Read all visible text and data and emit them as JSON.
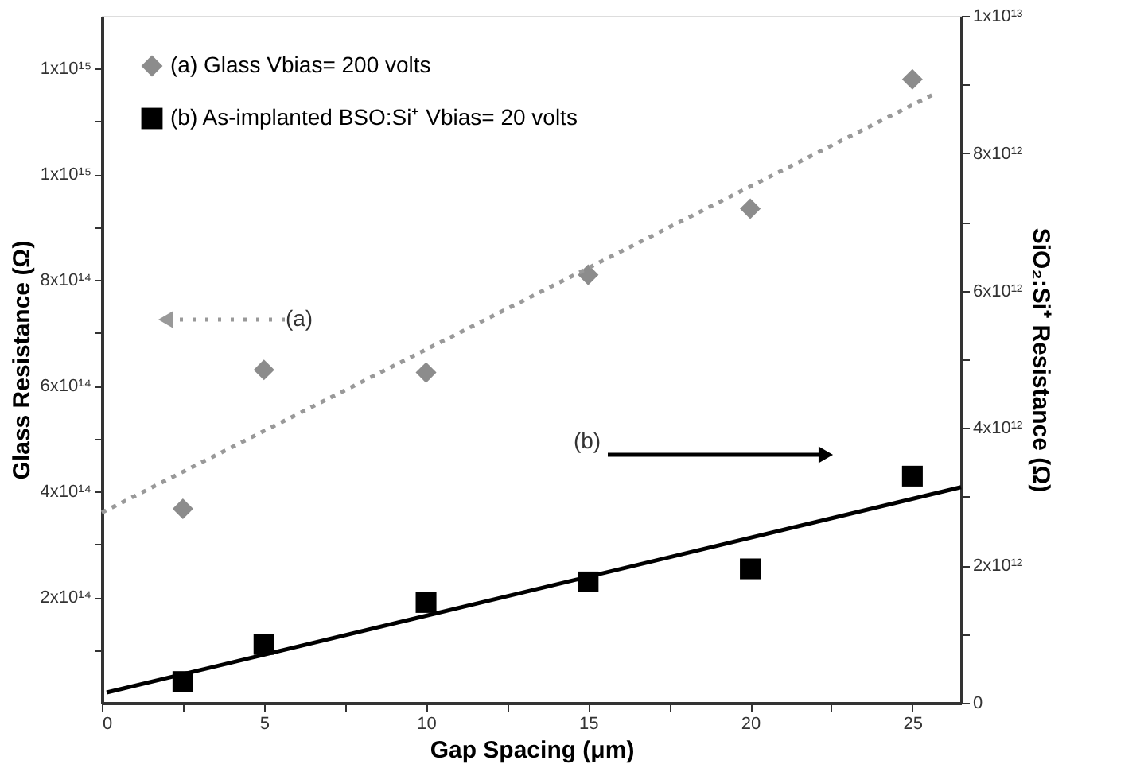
{
  "chart_data": {
    "type": "scatter",
    "xlabel": "Gap Spacing (μm)",
    "ylabel": "Glass Resistance (Ω)",
    "y2label": "SiO₂:Si⁺ Resistance (Ω)",
    "xlim": [
      0,
      26.5
    ],
    "xticks": [
      0,
      {
        "value": 2.5,
        "label": null
      },
      5,
      {
        "value": 7.5,
        "label": null
      },
      10,
      {
        "value": 12.5,
        "label": null
      },
      15,
      {
        "value": 17.5,
        "label": null
      },
      20,
      {
        "value": 22.5,
        "label": null
      },
      25
    ],
    "ylim": [
      0,
      1300000000000000.0
    ],
    "yticks": [
      {
        "value": 100000000000000.0,
        "label": null
      },
      {
        "value": 200000000000000.0,
        "label": "2x10¹⁴"
      },
      {
        "value": 300000000000000.0,
        "label": null
      },
      {
        "value": 400000000000000.0,
        "label": "4x10¹⁴"
      },
      {
        "value": 500000000000000.0,
        "label": null
      },
      {
        "value": 600000000000000.0,
        "label": "6x10¹⁴"
      },
      {
        "value": 700000000000000.0,
        "label": null
      },
      {
        "value": 800000000000000.0,
        "label": "8x10¹⁴"
      },
      {
        "value": 900000000000000.0,
        "label": null
      },
      {
        "value": 1000000000000000.0,
        "label": "1x10¹⁵"
      },
      {
        "value": 1100000000000000.0,
        "label": null
      },
      {
        "value": 1200000000000000.0,
        "label": "1x10¹⁵"
      }
    ],
    "y2lim": [
      0,
      10000000000000.0
    ],
    "y2ticks": [
      0,
      {
        "value": 1000000000000.0,
        "label": null
      },
      {
        "value": 2000000000000.0,
        "label": "2x10¹²"
      },
      {
        "value": 3000000000000.0,
        "label": null
      },
      {
        "value": 4000000000000.0,
        "label": "4x10¹²"
      },
      {
        "value": 5000000000000.0,
        "label": null
      },
      {
        "value": 6000000000000.0,
        "label": "6x10¹²"
      },
      {
        "value": 7000000000000.0,
        "label": null
      },
      {
        "value": 8000000000000.0,
        "label": "8x10¹²"
      },
      {
        "value": 9000000000000.0,
        "label": null
      },
      {
        "value": 10000000000000.0,
        "label": "1x10¹³"
      }
    ],
    "series": [
      {
        "name": "(a) Glass Vbias= 200 volts",
        "marker": "diamond",
        "color": "#8c8c8c",
        "x": [
          2.5,
          5,
          10,
          15,
          20,
          25
        ],
        "values": [
          367000000000000.0,
          630000000000000.0,
          625000000000000.0,
          810000000000000.0,
          935000000000000.0,
          1180000000000000.0
        ]
      },
      {
        "name": "(b) As-implanted BSO:Si⁺  Vbias= 20 volts",
        "marker": "square",
        "axis": "y2",
        "color": "#000000",
        "x": [
          2.5,
          5,
          10,
          15,
          20,
          25
        ],
        "values": [
          310000000000.0,
          850000000000.0,
          1460000000000.0,
          1760000000000.0,
          1950000000000.0,
          3300000000000.0
        ]
      },
      {
        "type": "line",
        "line_style": "dotted",
        "marker": "none",
        "color": "#999999",
        "x": [
          0,
          25.6
        ],
        "values": [
          360000000000000.0,
          1150000000000000.0
        ]
      },
      {
        "type": "line",
        "line_style": "solid",
        "marker": "none",
        "axis": "y2",
        "color": "#000000",
        "x": [
          0.15,
          26.5
        ],
        "values": [
          150000000000.0,
          3140000000000.0
        ]
      }
    ],
    "annotations": [
      "(a)",
      "(b)"
    ],
    "legend": "top left",
    "grid": false
  }
}
